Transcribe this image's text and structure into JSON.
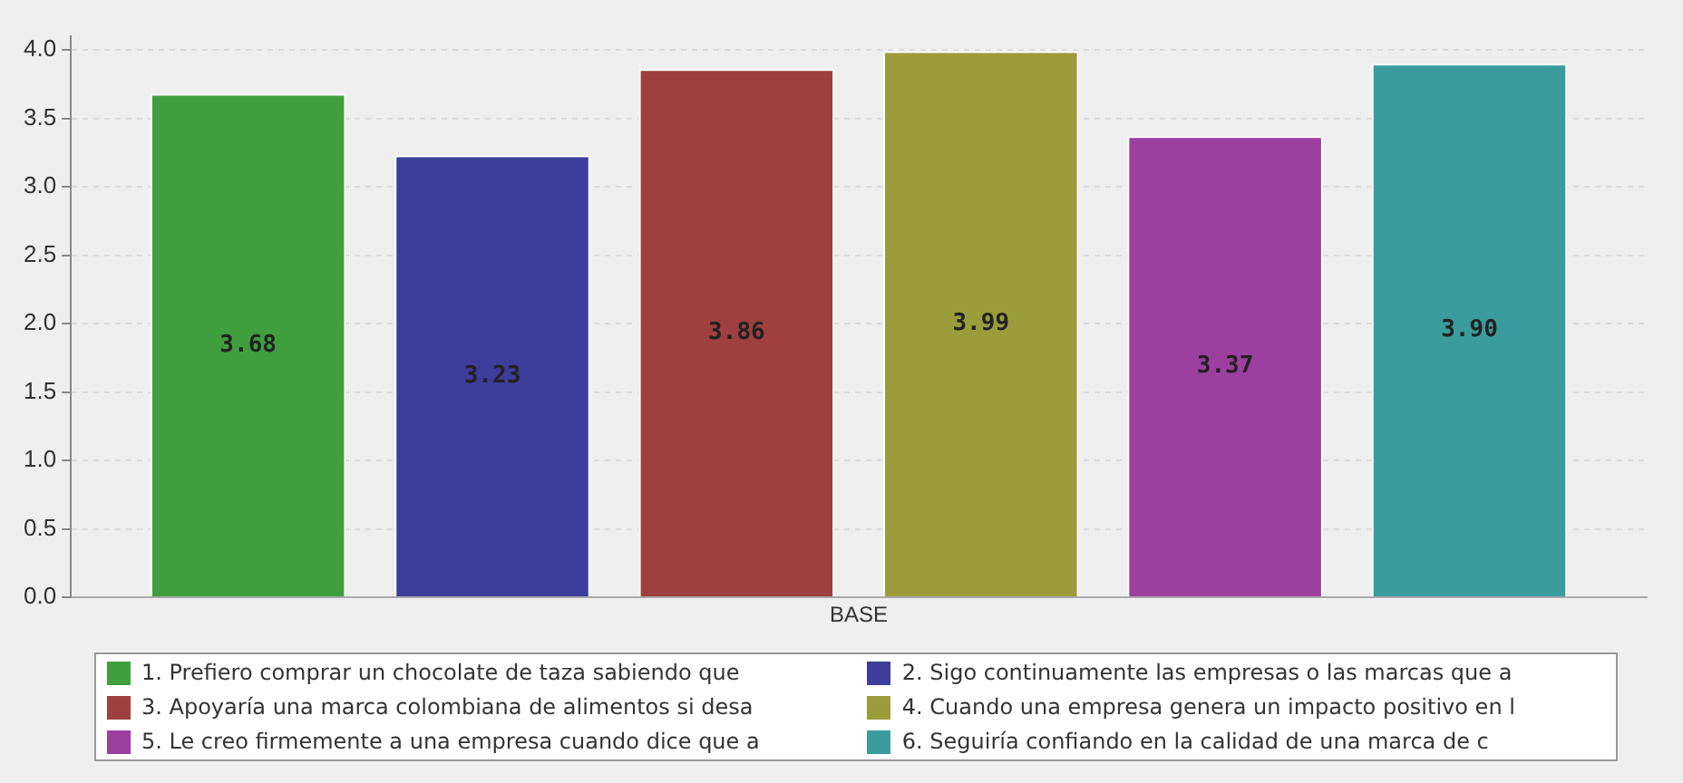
{
  "chart_data": {
    "type": "bar",
    "categories": [
      "BASE"
    ],
    "series": [
      {
        "name": "1. Prefiero comprar un chocolate de taza sabiendo que",
        "color": "#3f9f3f",
        "values": [
          3.68
        ],
        "value_labels": [
          "3.68"
        ]
      },
      {
        "name": "2. Sigo continuamente las empresas o las marcas que a",
        "color": "#3d3d9c",
        "values": [
          3.23
        ],
        "value_labels": [
          "3.23"
        ]
      },
      {
        "name": "3. Apoyaría una marca colombiana de alimentos si desa",
        "color": "#9f3f3f",
        "values": [
          3.86
        ],
        "value_labels": [
          "3.86"
        ]
      },
      {
        "name": "4. Cuando una empresa genera un impacto positivo en l",
        "color": "#9c9c3a",
        "values": [
          3.99
        ],
        "value_labels": [
          "3.99"
        ]
      },
      {
        "name": "5. Le creo firmemente a una empresa cuando dice que a",
        "color": "#9c3f9f",
        "values": [
          3.37
        ],
        "value_labels": [
          "3.37"
        ]
      },
      {
        "name": "6. Seguiría confiando en la calidad de una marca de c",
        "color": "#3a9c9c",
        "values": [
          3.9
        ],
        "value_labels": [
          "3.90"
        ]
      }
    ],
    "ylim": [
      0,
      4.1
    ],
    "yticks": [
      {
        "value": 0,
        "label": "0.0"
      },
      {
        "value": 0.5,
        "label": "0.5"
      },
      {
        "value": 1,
        "label": "1.0"
      },
      {
        "value": 1.5,
        "label": "1.5"
      },
      {
        "value": 2,
        "label": "2.0"
      },
      {
        "value": 2.5,
        "label": "2.5"
      },
      {
        "value": 3,
        "label": "3.0"
      },
      {
        "value": 3.5,
        "label": "3.5"
      },
      {
        "value": 4,
        "label": "4.0"
      }
    ],
    "grid": "y",
    "legend": "bottom"
  }
}
